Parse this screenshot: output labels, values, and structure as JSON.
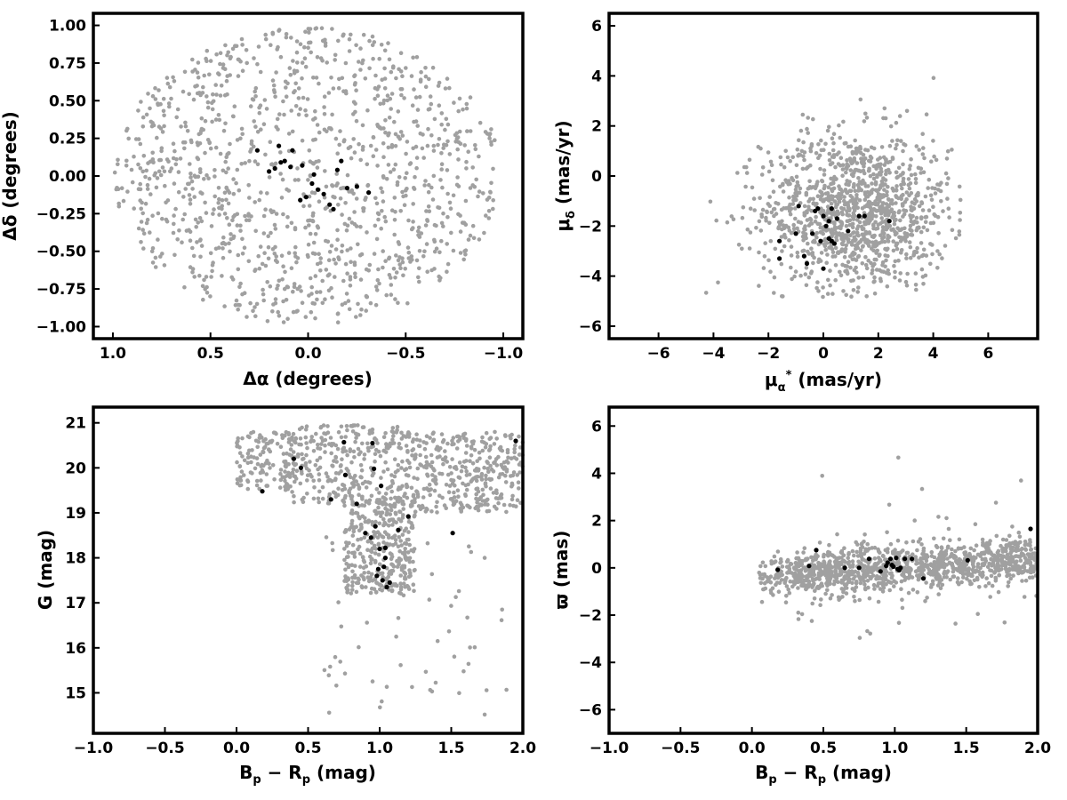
{
  "chart_data": [
    {
      "type": "scatter",
      "xlabel": "Δα (degrees)",
      "ylabel": "Δδ (degrees)",
      "xlim": [
        1.1,
        -1.1
      ],
      "ylim": [
        -1.08,
        1.08
      ],
      "xticks": [
        1.0,
        0.5,
        0.0,
        -0.5,
        -1.0
      ],
      "xtick_labels": [
        "1.0",
        "0.5",
        "0.0",
        "−0.5",
        "−1.0"
      ],
      "yticks": [
        1.0,
        0.75,
        0.5,
        0.25,
        0.0,
        -0.25,
        -0.5,
        -0.75,
        -1.0
      ],
      "ytick_labels": [
        "1.00",
        "0.75",
        "0.50",
        "0.25",
        "0.00",
        "−0.25",
        "−0.50",
        "−0.75",
        "−1.00"
      ],
      "grid": false,
      "background_points": {
        "color": "#a0a0a0",
        "distribution": "uniform disk of radius 1 deg",
        "approx_count": 1200
      },
      "series": [
        {
          "color": "#000000",
          "points": [
            [
              0.26,
              0.17
            ],
            [
              0.2,
              0.03
            ],
            [
              0.17,
              0.05
            ],
            [
              0.15,
              0.2
            ],
            [
              0.14,
              0.09
            ],
            [
              0.12,
              0.1
            ],
            [
              0.09,
              0.06
            ],
            [
              0.08,
              0.17
            ],
            [
              0.03,
              0.07
            ],
            [
              0.01,
              -0.14
            ],
            [
              -0.02,
              -0.05
            ],
            [
              -0.03,
              0.01
            ],
            [
              -0.05,
              -0.09
            ],
            [
              -0.08,
              -0.12
            ],
            [
              -0.11,
              -0.19
            ],
            [
              -0.13,
              -0.22
            ],
            [
              -0.15,
              0.04
            ],
            [
              -0.17,
              0.1
            ],
            [
              -0.2,
              -0.08
            ],
            [
              -0.25,
              -0.07
            ],
            [
              -0.31,
              -0.11
            ],
            [
              0.04,
              -0.16
            ]
          ]
        }
      ]
    },
    {
      "type": "scatter",
      "xlabel": "μα* (mas/yr)",
      "ylabel": "μδ (mas/yr)",
      "xlim": [
        -7.8,
        7.8
      ],
      "ylim": [
        -6.5,
        6.5
      ],
      "xticks": [
        -6,
        -4,
        -2,
        0,
        2,
        4,
        6
      ],
      "xtick_labels": [
        "−6",
        "−4",
        "−2",
        "0",
        "2",
        "4",
        "6"
      ],
      "yticks": [
        -6,
        -4,
        -2,
        0,
        2,
        4,
        6
      ],
      "ytick_labels": [
        "−6",
        "−4",
        "−2",
        "0",
        "2",
        "4",
        "6"
      ],
      "grid": false,
      "background_points": {
        "color": "#a0a0a0",
        "distribution": "cloud centred near (1.2, -1.4), x from -4.8 to 5, y from -4.9 to 4.5",
        "approx_count": 1200
      },
      "series": [
        {
          "color": "#000000",
          "points": [
            [
              -1.6,
              -2.6
            ],
            [
              -1.6,
              -3.3
            ],
            [
              -1.0,
              -2.3
            ],
            [
              -0.9,
              -1.2
            ],
            [
              -0.7,
              -3.2
            ],
            [
              -0.6,
              -3.5
            ],
            [
              -0.4,
              -2.3
            ],
            [
              -0.3,
              -1.4
            ],
            [
              -0.1,
              -2.6
            ],
            [
              0.0,
              -1.6
            ],
            [
              0.1,
              -2.0
            ],
            [
              0.2,
              -1.8
            ],
            [
              0.2,
              -2.5
            ],
            [
              0.3,
              -1.3
            ],
            [
              0.3,
              -2.6
            ],
            [
              0.4,
              -2.7
            ],
            [
              0.5,
              -1.7
            ],
            [
              0.9,
              -2.2
            ],
            [
              1.3,
              -1.6
            ],
            [
              1.5,
              -1.6
            ],
            [
              2.4,
              -1.8
            ],
            [
              0.0,
              -3.7
            ],
            [
              -0.2,
              -1.3
            ]
          ]
        }
      ]
    },
    {
      "type": "scatter",
      "xlabel": "Bp − Rp (mag)",
      "ylabel": "G (mag)",
      "xlim": [
        -1.0,
        2.0
      ],
      "ylim": [
        14.1,
        21.35
      ],
      "xticks": [
        -1.0,
        -0.5,
        0.0,
        0.5,
        1.0,
        1.5,
        2.0
      ],
      "xtick_labels": [
        "−1.0",
        "−0.5",
        "0.0",
        "0.5",
        "1.0",
        "1.5",
        "2.0"
      ],
      "yticks": [
        15,
        16,
        17,
        18,
        19,
        20,
        21
      ],
      "ytick_labels": [
        "15",
        "16",
        "17",
        "18",
        "19",
        "20",
        "21"
      ],
      "grid": false,
      "background_points": {
        "color": "#a0a0a0",
        "distribution": "dense clump at G 19-21 for colour 0.3-2.0, tail down to G 15 near colour 0.9-1.3",
        "approx_count": 1200
      },
      "series": [
        {
          "color": "#000000",
          "points": [
            [
              0.18,
              19.48
            ],
            [
              0.4,
              20.2
            ],
            [
              0.45,
              20.0
            ],
            [
              0.66,
              19.3
            ],
            [
              0.75,
              20.57
            ],
            [
              0.76,
              19.84
            ],
            [
              0.84,
              19.2
            ],
            [
              0.9,
              18.55
            ],
            [
              0.94,
              18.45
            ],
            [
              0.95,
              20.55
            ],
            [
              0.96,
              19.98
            ],
            [
              0.97,
              18.7
            ],
            [
              0.98,
              17.6
            ],
            [
              0.99,
              17.75
            ],
            [
              1.0,
              18.2
            ],
            [
              1.01,
              19.6
            ],
            [
              1.02,
              17.5
            ],
            [
              1.03,
              17.8
            ],
            [
              1.04,
              18.0
            ],
            [
              1.05,
              17.35
            ],
            [
              1.07,
              17.45
            ],
            [
              1.13,
              18.62
            ],
            [
              1.2,
              18.92
            ],
            [
              1.51,
              18.55
            ],
            [
              1.95,
              20.6
            ],
            [
              1.04,
              18.22
            ]
          ]
        }
      ]
    },
    {
      "type": "scatter",
      "xlabel": "Bp − Rp (mag)",
      "ylabel": "ϖ (mas)",
      "xlim": [
        -1.0,
        2.0
      ],
      "ylim": [
        -7.0,
        6.8
      ],
      "xticks": [
        -1.0,
        -0.5,
        0.0,
        0.5,
        1.0,
        1.5,
        2.0
      ],
      "xtick_labels": [
        "−1.0",
        "−0.5",
        "0.0",
        "0.5",
        "1.0",
        "1.5",
        "2.0"
      ],
      "yticks": [
        -6,
        -4,
        -2,
        0,
        2,
        4,
        6
      ],
      "ytick_labels": [
        "−6",
        "−4",
        "−2",
        "0",
        "2",
        "4",
        "6"
      ],
      "grid": false,
      "background_points": {
        "color": "#a0a0a0",
        "distribution": "horizontal band around 0 mas spanning colour 0.1-2.0, scatter -2 to 2, outliers to ±6",
        "approx_count": 1200
      },
      "series": [
        {
          "color": "#000000",
          "points": [
            [
              0.18,
              -0.08
            ],
            [
              0.4,
              0.08
            ],
            [
              0.45,
              0.75
            ],
            [
              0.65,
              0.0
            ],
            [
              0.75,
              0.0
            ],
            [
              0.82,
              0.38
            ],
            [
              0.9,
              -0.15
            ],
            [
              0.94,
              0.08
            ],
            [
              0.95,
              0.22
            ],
            [
              0.97,
              0.38
            ],
            [
              0.99,
              0.05
            ],
            [
              1.01,
              0.42
            ],
            [
              1.02,
              -0.05
            ],
            [
              1.03,
              -0.1
            ],
            [
              1.04,
              0.0
            ],
            [
              1.07,
              0.38
            ],
            [
              1.12,
              0.38
            ],
            [
              1.2,
              -0.45
            ],
            [
              1.51,
              0.32
            ],
            [
              1.95,
              1.65
            ],
            [
              0.98,
              0.12
            ]
          ]
        }
      ]
    }
  ]
}
